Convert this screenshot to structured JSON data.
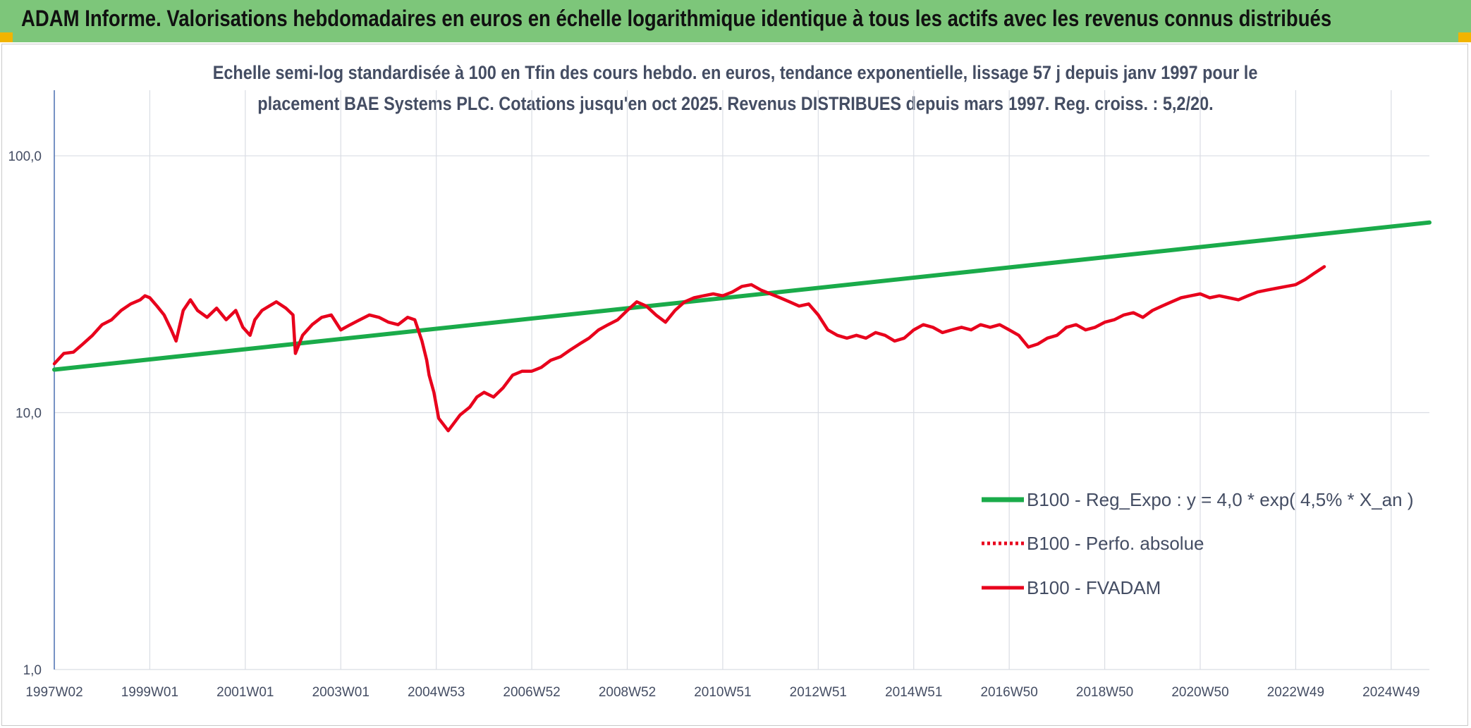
{
  "banner": {
    "title": "ADAM Informe. Valorisations hebdomadaires en euros en échelle logarithmique identique à tous les actifs avec les revenus connus distribués",
    "background": "#7dc67a",
    "corner_color": "#f1b400"
  },
  "chart_data": {
    "type": "line",
    "title_lines": [
      "Echelle semi-log standardisée à 100 en Tfin des cours hebdo. en euros, tendance exponentielle, lissage 57 j depuis janv 1997 pour le",
      "placement BAE Systems PLC. Cotations jusqu'en oct 2025. Revenus DISTRIBUES depuis mars 1997. Reg. croiss. : 5,2/20."
    ],
    "y_scale": "log",
    "ylim": [
      1,
      180
    ],
    "y_ticks": [
      {
        "value": 1,
        "label": "1,0"
      },
      {
        "value": 10,
        "label": "10,0"
      },
      {
        "value": 100,
        "label": "100,0"
      }
    ],
    "xlim": [
      1997.0,
      2025.8
    ],
    "x_ticks": [
      {
        "value": 1997.0,
        "label": "1997W02"
      },
      {
        "value": 1999.0,
        "label": "1999W01"
      },
      {
        "value": 2001.0,
        "label": "2001W01"
      },
      {
        "value": 2003.0,
        "label": "2003W01"
      },
      {
        "value": 2005.0,
        "label": "2004W53"
      },
      {
        "value": 2007.0,
        "label": "2006W52"
      },
      {
        "value": 2009.0,
        "label": "2008W52"
      },
      {
        "value": 2011.0,
        "label": "2010W51"
      },
      {
        "value": 2013.0,
        "label": "2012W51"
      },
      {
        "value": 2015.0,
        "label": "2014W51"
      },
      {
        "value": 2017.0,
        "label": "2016W50"
      },
      {
        "value": 2019.0,
        "label": "2018W50"
      },
      {
        "value": 2021.0,
        "label": "2020W50"
      },
      {
        "value": 2023.0,
        "label": "2022W49"
      },
      {
        "value": 2025.0,
        "label": "2024W49"
      }
    ],
    "grid": {
      "vertical": true,
      "horizontal": true
    },
    "legend_position": "bottom-right",
    "series": [
      {
        "name": "B100 - Reg_Expo : y = 4,0 * exp( 4,5% *  X_an )",
        "color": "#1aab4a",
        "style": "solid",
        "points": [
          [
            1997.0,
            14.7
          ],
          [
            2025.8,
            55.0
          ]
        ]
      },
      {
        "name": "B100 - Perfo. absolue",
        "color": "#e8001c",
        "style": "dotted",
        "points": []
      },
      {
        "name": "B100 - FVADAM",
        "color": "#e8001c",
        "style": "solid",
        "points": [
          [
            1997.0,
            15.5
          ],
          [
            1997.2,
            17.0
          ],
          [
            1997.4,
            17.2
          ],
          [
            1997.6,
            18.5
          ],
          [
            1997.8,
            20.0
          ],
          [
            1998.0,
            22.0
          ],
          [
            1998.2,
            23.0
          ],
          [
            1998.4,
            25.0
          ],
          [
            1998.6,
            26.5
          ],
          [
            1998.8,
            27.5
          ],
          [
            1998.9,
            28.5
          ],
          [
            1999.0,
            28.0
          ],
          [
            1999.15,
            26.0
          ],
          [
            1999.3,
            24.0
          ],
          [
            1999.45,
            21.0
          ],
          [
            1999.55,
            19.0
          ],
          [
            1999.7,
            25.0
          ],
          [
            1999.85,
            27.5
          ],
          [
            2000.0,
            25.0
          ],
          [
            2000.2,
            23.5
          ],
          [
            2000.4,
            25.5
          ],
          [
            2000.6,
            23.0
          ],
          [
            2000.8,
            25.0
          ],
          [
            2000.95,
            21.5
          ],
          [
            2001.1,
            20.0
          ],
          [
            2001.2,
            23.0
          ],
          [
            2001.35,
            25.0
          ],
          [
            2001.5,
            26.0
          ],
          [
            2001.65,
            27.0
          ],
          [
            2001.85,
            25.5
          ],
          [
            2002.0,
            24.0
          ],
          [
            2002.05,
            17.0
          ],
          [
            2002.2,
            20.0
          ],
          [
            2002.4,
            22.0
          ],
          [
            2002.6,
            23.5
          ],
          [
            2002.8,
            24.0
          ],
          [
            2003.0,
            21.0
          ],
          [
            2003.2,
            22.0
          ],
          [
            2003.4,
            23.0
          ],
          [
            2003.6,
            24.0
          ],
          [
            2003.8,
            23.5
          ],
          [
            2004.0,
            22.5
          ],
          [
            2004.2,
            22.0
          ],
          [
            2004.4,
            23.5
          ],
          [
            2004.55,
            23.0
          ],
          [
            2004.7,
            19.0
          ],
          [
            2004.8,
            16.0
          ],
          [
            2004.85,
            14.0
          ],
          [
            2004.95,
            12.0
          ],
          [
            2005.05,
            9.5
          ],
          [
            2005.15,
            9.0
          ],
          [
            2005.25,
            8.5
          ],
          [
            2005.35,
            9.0
          ],
          [
            2005.5,
            9.8
          ],
          [
            2005.7,
            10.5
          ],
          [
            2005.85,
            11.5
          ],
          [
            2006.0,
            12.0
          ],
          [
            2006.2,
            11.5
          ],
          [
            2006.4,
            12.5
          ],
          [
            2006.6,
            14.0
          ],
          [
            2006.8,
            14.5
          ],
          [
            2007.0,
            14.5
          ],
          [
            2007.2,
            15.0
          ],
          [
            2007.4,
            16.0
          ],
          [
            2007.6,
            16.5
          ],
          [
            2007.8,
            17.5
          ],
          [
            2008.0,
            18.5
          ],
          [
            2008.2,
            19.5
          ],
          [
            2008.4,
            21.0
          ],
          [
            2008.6,
            22.0
          ],
          [
            2008.8,
            23.0
          ],
          [
            2009.0,
            25.0
          ],
          [
            2009.2,
            27.0
          ],
          [
            2009.4,
            26.0
          ],
          [
            2009.6,
            24.0
          ],
          [
            2009.8,
            22.5
          ],
          [
            2010.0,
            25.0
          ],
          [
            2010.2,
            27.0
          ],
          [
            2010.4,
            28.0
          ],
          [
            2010.6,
            28.5
          ],
          [
            2010.8,
            29.0
          ],
          [
            2011.0,
            28.5
          ],
          [
            2011.2,
            29.5
          ],
          [
            2011.4,
            31.0
          ],
          [
            2011.6,
            31.5
          ],
          [
            2011.8,
            30.0
          ],
          [
            2012.0,
            29.0
          ],
          [
            2012.2,
            28.0
          ],
          [
            2012.4,
            27.0
          ],
          [
            2012.6,
            26.0
          ],
          [
            2012.8,
            26.5
          ],
          [
            2013.0,
            24.0
          ],
          [
            2013.2,
            21.0
          ],
          [
            2013.4,
            20.0
          ],
          [
            2013.6,
            19.5
          ],
          [
            2013.8,
            20.0
          ],
          [
            2014.0,
            19.5
          ],
          [
            2014.2,
            20.5
          ],
          [
            2014.4,
            20.0
          ],
          [
            2014.6,
            19.0
          ],
          [
            2014.8,
            19.5
          ],
          [
            2015.0,
            21.0
          ],
          [
            2015.2,
            22.0
          ],
          [
            2015.4,
            21.5
          ],
          [
            2015.6,
            20.5
          ],
          [
            2015.8,
            21.0
          ],
          [
            2016.0,
            21.5
          ],
          [
            2016.2,
            21.0
          ],
          [
            2016.4,
            22.0
          ],
          [
            2016.6,
            21.5
          ],
          [
            2016.8,
            22.0
          ],
          [
            2017.0,
            21.0
          ],
          [
            2017.2,
            20.0
          ],
          [
            2017.4,
            18.0
          ],
          [
            2017.6,
            18.5
          ],
          [
            2017.8,
            19.5
          ],
          [
            2018.0,
            20.0
          ],
          [
            2018.2,
            21.5
          ],
          [
            2018.4,
            22.0
          ],
          [
            2018.6,
            21.0
          ],
          [
            2018.8,
            21.5
          ],
          [
            2019.0,
            22.5
          ],
          [
            2019.2,
            23.0
          ],
          [
            2019.4,
            24.0
          ],
          [
            2019.6,
            24.5
          ],
          [
            2019.8,
            23.5
          ],
          [
            2020.0,
            25.0
          ],
          [
            2020.2,
            26.0
          ],
          [
            2020.4,
            27.0
          ],
          [
            2020.6,
            28.0
          ],
          [
            2020.8,
            28.5
          ],
          [
            2021.0,
            29.0
          ],
          [
            2021.2,
            28.0
          ],
          [
            2021.4,
            28.5
          ],
          [
            2021.6,
            28.0
          ],
          [
            2021.8,
            27.5
          ],
          [
            2022.0,
            28.5
          ],
          [
            2022.2,
            29.5
          ],
          [
            2022.4,
            30.0
          ],
          [
            2022.6,
            30.5
          ],
          [
            2022.8,
            31.0
          ],
          [
            2023.0,
            31.5
          ],
          [
            2023.2,
            33.0
          ],
          [
            2023.4,
            35.0
          ],
          [
            2023.6,
            37.0
          ]
        ]
      }
    ]
  }
}
